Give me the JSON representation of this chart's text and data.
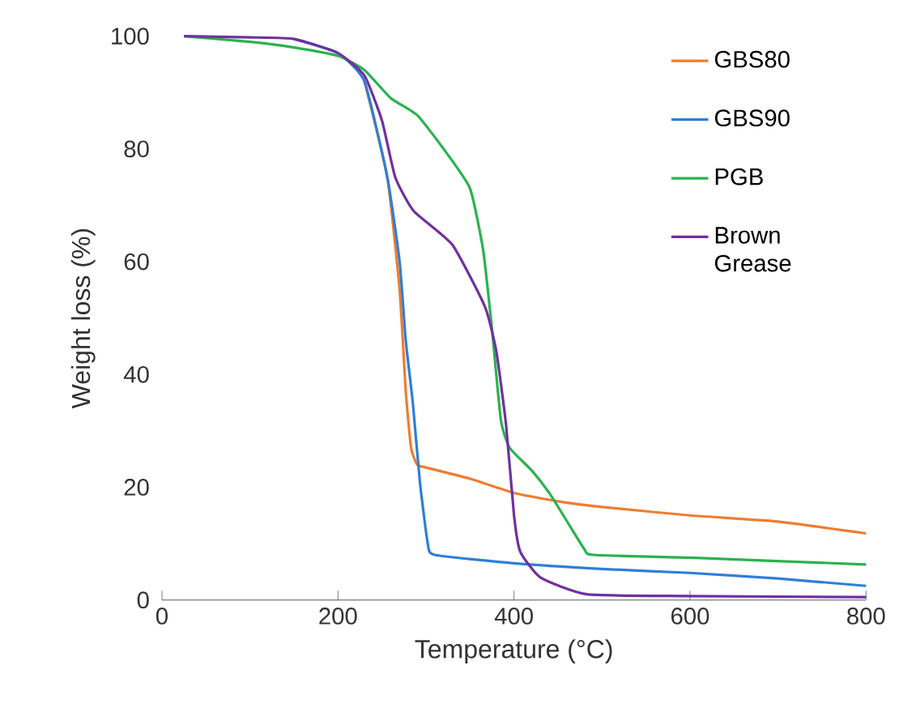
{
  "chart_data": {
    "type": "line",
    "xlabel": "Temperature (°C)",
    "ylabel": "Weight loss (%)",
    "xlim": [
      0,
      800
    ],
    "ylim": [
      0,
      100
    ],
    "xticks": [
      0,
      200,
      400,
      600,
      800
    ],
    "yticks": [
      0,
      20,
      40,
      60,
      80,
      100
    ],
    "grid": false,
    "legend": "top right",
    "marker": "none",
    "line_style": "solid",
    "series": [
      {
        "name": "GBS80",
        "color": "#ed7d31",
        "x": [
          230,
          256,
          270,
          277,
          283,
          290,
          300,
          350,
          400,
          450,
          500,
          600,
          700,
          800
        ],
        "values": [
          92,
          75,
          55,
          37,
          27,
          24,
          23.5,
          21.5,
          19,
          17.5,
          16.5,
          15,
          13.9,
          11.8
        ]
      },
      {
        "name": "GBS90",
        "color": "#2f7ed8",
        "x": [
          150,
          200,
          230,
          256,
          270,
          277,
          285,
          293,
          302,
          310,
          400,
          500,
          600,
          700,
          800
        ],
        "values": [
          99.5,
          97,
          92,
          75,
          60,
          46,
          35,
          21,
          10,
          8,
          6.5,
          5.5,
          4.8,
          3.8,
          2.5
        ]
      },
      {
        "name": "PGB",
        "color": "#2ab24e",
        "x": [
          25,
          100,
          150,
          200,
          230,
          260,
          290,
          320,
          350,
          365,
          375,
          385,
          395,
          420,
          440,
          460,
          480,
          490,
          600,
          800
        ],
        "values": [
          100,
          99,
          98,
          96.5,
          94,
          89,
          86,
          80,
          73,
          62,
          48,
          32,
          27,
          23,
          19,
          14,
          9,
          8,
          7.5,
          6.3
        ]
      },
      {
        "name": "Brown Grease",
        "color": "#7030a0",
        "x": [
          25,
          100,
          150,
          200,
          230,
          250,
          265,
          286,
          330,
          367,
          380,
          391,
          400,
          407,
          430,
          483,
          600,
          800
        ],
        "values": [
          100,
          99.8,
          99.5,
          97,
          93,
          85,
          75,
          69,
          63,
          52,
          44,
          31,
          15,
          8.6,
          4,
          1,
          0.7,
          0.5
        ]
      }
    ]
  }
}
